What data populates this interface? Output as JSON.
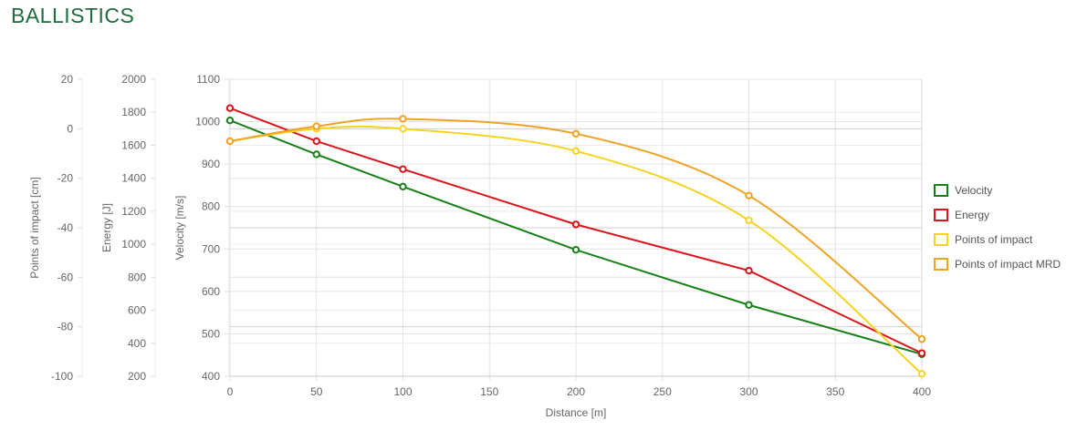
{
  "page": {
    "title": "BALLISTICS"
  },
  "chart_data": {
    "type": "line",
    "title": "",
    "xlabel": "Distance [m]",
    "xlim": [
      0,
      400
    ],
    "x_ticks": [
      0,
      50,
      100,
      150,
      200,
      250,
      300,
      350,
      400
    ],
    "x": [
      0,
      50,
      100,
      200,
      300,
      400
    ],
    "grid": true,
    "legend_position": "right",
    "y_axes": [
      {
        "id": "poi",
        "label": "Points of impact [cm]",
        "range": [
          -100,
          20
        ],
        "ticks": [
          20,
          0,
          -20,
          -40,
          -60,
          -80,
          -100
        ]
      },
      {
        "id": "energy",
        "label": "Energy [J]",
        "range": [
          200,
          2000
        ],
        "ticks": [
          2000,
          1800,
          1600,
          1400,
          1200,
          1000,
          800,
          600,
          400,
          200
        ]
      },
      {
        "id": "velocity",
        "label": "Velocity [m/s]",
        "range": [
          400,
          1100
        ],
        "ticks": [
          1100,
          1000,
          900,
          800,
          700,
          600,
          500,
          400
        ]
      }
    ],
    "series": [
      {
        "name": "Velocity",
        "axis": "velocity",
        "color": "#158015",
        "smooth": false,
        "values": [
          1003,
          923,
          847,
          698,
          568,
          452
        ]
      },
      {
        "name": "Energy",
        "axis": "energy",
        "color": "#d9141a",
        "smooth": false,
        "values": [
          1825,
          1625,
          1455,
          1120,
          840,
          340
        ]
      },
      {
        "name": "Points of impact",
        "axis": "poi",
        "color": "#f5d31f",
        "smooth": true,
        "values": [
          -5,
          0,
          0,
          -9,
          -37,
          -99
        ]
      },
      {
        "name": "Points of impact MRD",
        "axis": "poi",
        "color": "#f0a223",
        "smooth": true,
        "values": [
          -5,
          1,
          4,
          -2,
          -27,
          -85
        ]
      }
    ]
  }
}
